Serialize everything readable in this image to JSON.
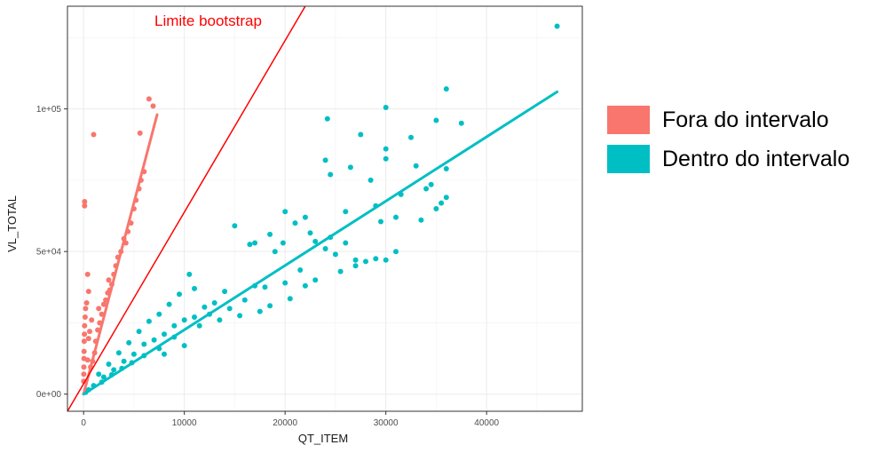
{
  "chart_data": {
    "type": "scatter",
    "xlabel": "QT_ITEM",
    "ylabel": "VL_TOTAL",
    "xlim": [
      -1600,
      49500
    ],
    "ylim": [
      -6000,
      136000
    ],
    "x_ticks": [
      0,
      10000,
      20000,
      30000,
      40000
    ],
    "x_tick_labels": [
      "0",
      "10000",
      "20000",
      "30000",
      "40000"
    ],
    "y_ticks": [
      0,
      50000,
      100000
    ],
    "y_tick_labels": [
      "0e+00",
      "5e+04",
      "1e+05"
    ],
    "grid": true,
    "legend_position": "right",
    "annotation": {
      "text": "Limite bootstrap",
      "color": "#ff0000"
    },
    "series": [
      {
        "name": "Fora do intervalo",
        "color": "#f8766d",
        "points": [
          [
            6900,
            101000
          ],
          [
            6500,
            103500
          ],
          [
            5600,
            91500
          ],
          [
            1000,
            91000
          ],
          [
            100,
            67500
          ],
          [
            100,
            66000
          ],
          [
            6000,
            78000
          ],
          [
            5700,
            75000
          ],
          [
            5500,
            72000
          ],
          [
            5200,
            68000
          ],
          [
            5000,
            65000
          ],
          [
            4700,
            60000
          ],
          [
            4400,
            57000
          ],
          [
            4200,
            53000
          ],
          [
            4000,
            54500
          ],
          [
            3700,
            50000
          ],
          [
            3400,
            48000
          ],
          [
            3200,
            45000
          ],
          [
            3000,
            42000
          ],
          [
            2800,
            38500
          ],
          [
            2600,
            36500
          ],
          [
            2400,
            35500
          ],
          [
            2200,
            33000
          ],
          [
            2000,
            31500
          ],
          [
            1800,
            28000
          ],
          [
            1600,
            25000
          ],
          [
            1400,
            22500
          ],
          [
            1200,
            18500
          ],
          [
            1100,
            14500
          ],
          [
            900,
            11500
          ],
          [
            700,
            9500
          ],
          [
            600,
            22000
          ],
          [
            500,
            19500
          ],
          [
            400,
            42000
          ],
          [
            500,
            36000
          ],
          [
            300,
            32000
          ],
          [
            200,
            30000
          ],
          [
            150,
            27000
          ],
          [
            100,
            24000
          ],
          [
            80,
            21000
          ],
          [
            60,
            18500
          ],
          [
            50,
            15000
          ],
          [
            40,
            12500
          ],
          [
            30,
            9500
          ],
          [
            20,
            7000
          ],
          [
            10,
            4500
          ],
          [
            400,
            12000
          ],
          [
            800,
            26000
          ],
          [
            1500,
            30000
          ],
          [
            2500,
            40000
          ]
        ]
      },
      {
        "name": "Dentro do intervalo",
        "color": "#00bfc4",
        "points": [
          [
            47000,
            129000
          ],
          [
            36000,
            107000
          ],
          [
            30000,
            100500
          ],
          [
            24200,
            96500
          ],
          [
            35000,
            96000
          ],
          [
            37500,
            95000
          ],
          [
            27500,
            91000
          ],
          [
            30000,
            86000
          ],
          [
            32500,
            90000
          ],
          [
            24000,
            82000
          ],
          [
            30000,
            82500
          ],
          [
            26500,
            79500
          ],
          [
            33000,
            80000
          ],
          [
            28500,
            75000
          ],
          [
            36000,
            79000
          ],
          [
            24500,
            77000
          ],
          [
            34000,
            72000
          ],
          [
            31500,
            70000
          ],
          [
            35500,
            67000
          ],
          [
            29000,
            66000
          ],
          [
            26000,
            64000
          ],
          [
            22000,
            62000
          ],
          [
            20000,
            64000
          ],
          [
            21000,
            60000
          ],
          [
            18500,
            56000
          ],
          [
            19800,
            53000
          ],
          [
            15000,
            59000
          ],
          [
            17000,
            53000
          ],
          [
            16500,
            52500
          ],
          [
            19000,
            50000
          ],
          [
            22500,
            56500
          ],
          [
            24500,
            55000
          ],
          [
            23000,
            53500
          ],
          [
            25000,
            49000
          ],
          [
            27000,
            47000
          ],
          [
            28000,
            46500
          ],
          [
            30000,
            47000
          ],
          [
            21500,
            43500
          ],
          [
            20000,
            39000
          ],
          [
            18000,
            37500
          ],
          [
            17000,
            38000
          ],
          [
            14000,
            36000
          ],
          [
            13000,
            32000
          ],
          [
            12000,
            30500
          ],
          [
            11000,
            27000
          ],
          [
            10000,
            26000
          ],
          [
            9000,
            24000
          ],
          [
            8000,
            21000
          ],
          [
            7000,
            19000
          ],
          [
            6000,
            17500
          ],
          [
            5000,
            14000
          ],
          [
            4000,
            11500
          ],
          [
            3000,
            8500
          ],
          [
            2000,
            6000
          ],
          [
            1000,
            3000
          ],
          [
            500,
            1500
          ],
          [
            200,
            600
          ],
          [
            10500,
            42000
          ],
          [
            11000,
            37000
          ],
          [
            9500,
            35000
          ],
          [
            8500,
            31500
          ],
          [
            7500,
            28000
          ],
          [
            6500,
            25500
          ],
          [
            5500,
            22000
          ],
          [
            4500,
            18000
          ],
          [
            3500,
            14500
          ],
          [
            2500,
            10500
          ],
          [
            1500,
            7000
          ],
          [
            12500,
            28000
          ],
          [
            14500,
            30000
          ],
          [
            16000,
            33000
          ],
          [
            17500,
            29000
          ],
          [
            11500,
            24000
          ],
          [
            9000,
            20000
          ],
          [
            7500,
            16000
          ],
          [
            6000,
            13500
          ],
          [
            4800,
            11000
          ],
          [
            3800,
            9000
          ],
          [
            2800,
            6800
          ],
          [
            1800,
            4200
          ],
          [
            10000,
            17000
          ],
          [
            8000,
            14000
          ],
          [
            13500,
            26000
          ],
          [
            15500,
            27500
          ],
          [
            18500,
            31000
          ],
          [
            20500,
            33500
          ],
          [
            22000,
            38000
          ],
          [
            23000,
            40000
          ],
          [
            25500,
            43000
          ],
          [
            27000,
            45000
          ],
          [
            29000,
            47500
          ],
          [
            31000,
            50000
          ],
          [
            33500,
            61000
          ],
          [
            35000,
            65000
          ],
          [
            26000,
            53000
          ],
          [
            24000,
            51000
          ],
          [
            36000,
            69000
          ],
          [
            34500,
            73500
          ],
          [
            31000,
            62000
          ],
          [
            29500,
            60500
          ]
        ]
      }
    ],
    "fit_lines": [
      {
        "series": "Fora do intervalo",
        "from": [
          0,
          0
        ],
        "to": [
          7300,
          98000
        ]
      },
      {
        "series": "Dentro do intervalo",
        "from": [
          0,
          0
        ],
        "to": [
          47000,
          106000
        ]
      }
    ],
    "reference_line": {
      "name": "Limite bootstrap",
      "from": [
        -1600,
        -6000
      ],
      "to": [
        22000,
        136000
      ]
    }
  }
}
